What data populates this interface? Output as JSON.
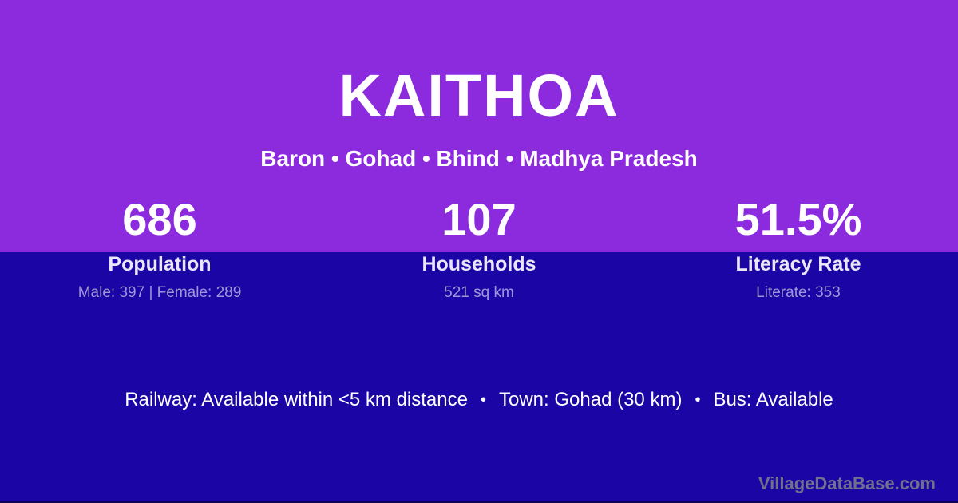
{
  "header": {
    "village_name": "KAITHOA",
    "location_path": "Baron • Gohad • Bhind • Madhya Pradesh"
  },
  "stats": [
    {
      "value": "686",
      "label": "Population",
      "detail": "Male: 397 | Female: 289"
    },
    {
      "value": "107",
      "label": "Households",
      "detail": "521 sq km"
    },
    {
      "value": "51.5%",
      "label": "Literacy Rate",
      "detail": "Literate: 353"
    }
  ],
  "amenities": {
    "railway": "Railway: Available within <5 km distance",
    "town": "Town: Gohad (30 km)",
    "bus": "Bus: Available",
    "separator": "•"
  },
  "watermark": "VillageDataBase.com",
  "colors": {
    "top_background": "#8C2BDE",
    "bottom_background": "#1B05A4",
    "text_primary": "#FFFFFF",
    "label_color": "#EAE6F8",
    "detail_color": "#A096D7",
    "watermark_color": "#72718C"
  }
}
